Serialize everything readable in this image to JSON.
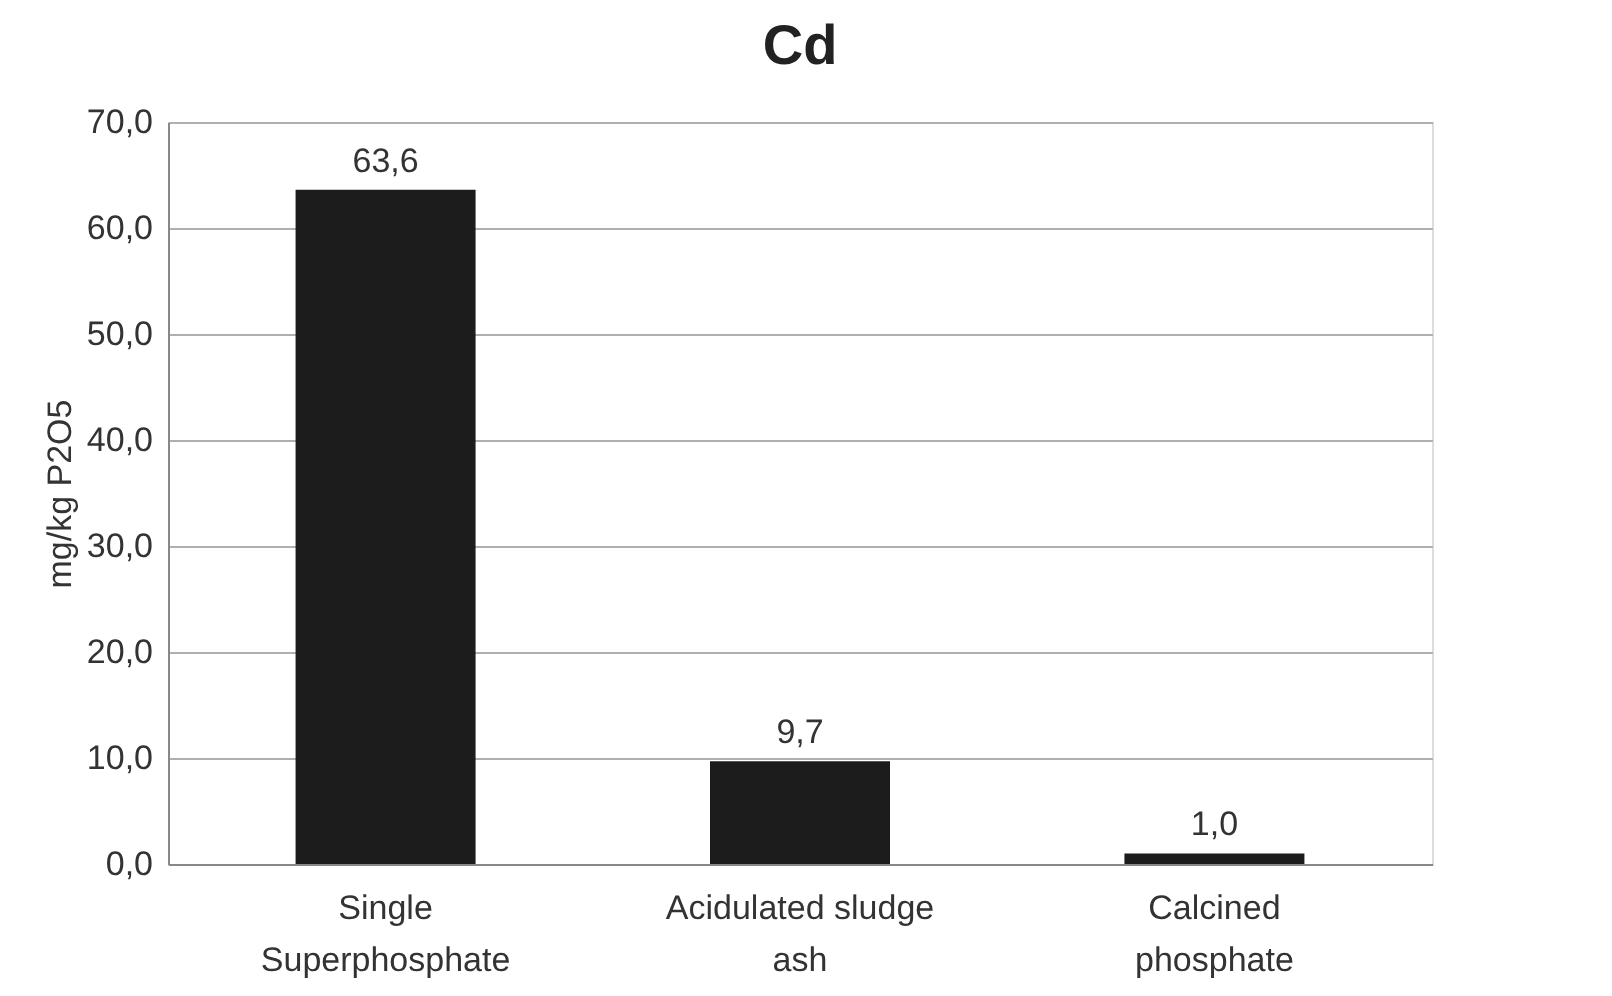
{
  "chart_data": {
    "type": "bar",
    "title": "Cd",
    "ylabel": "mg/kg P2O5",
    "categories": [
      "Single Superphosphate",
      "Acidulated sludge ash",
      "Calcined phosphate"
    ],
    "values": [
      63.6,
      9.7,
      1.0
    ],
    "color": "#1c1c1c",
    "value_labels": [
      "63,6",
      "9,7",
      "1,0"
    ],
    "ylim": [
      0,
      70
    ],
    "yticks": [
      {
        "value": 0,
        "label": "0,0"
      },
      {
        "value": 10,
        "label": "10,0"
      },
      {
        "value": 20,
        "label": "20,0"
      },
      {
        "value": 30,
        "label": "30,0"
      },
      {
        "value": 40,
        "label": "40,0"
      },
      {
        "value": 50,
        "label": "50,0"
      },
      {
        "value": 60,
        "label": "60,0"
      },
      {
        "value": 70,
        "label": "70,0"
      }
    ],
    "grid": "y"
  }
}
